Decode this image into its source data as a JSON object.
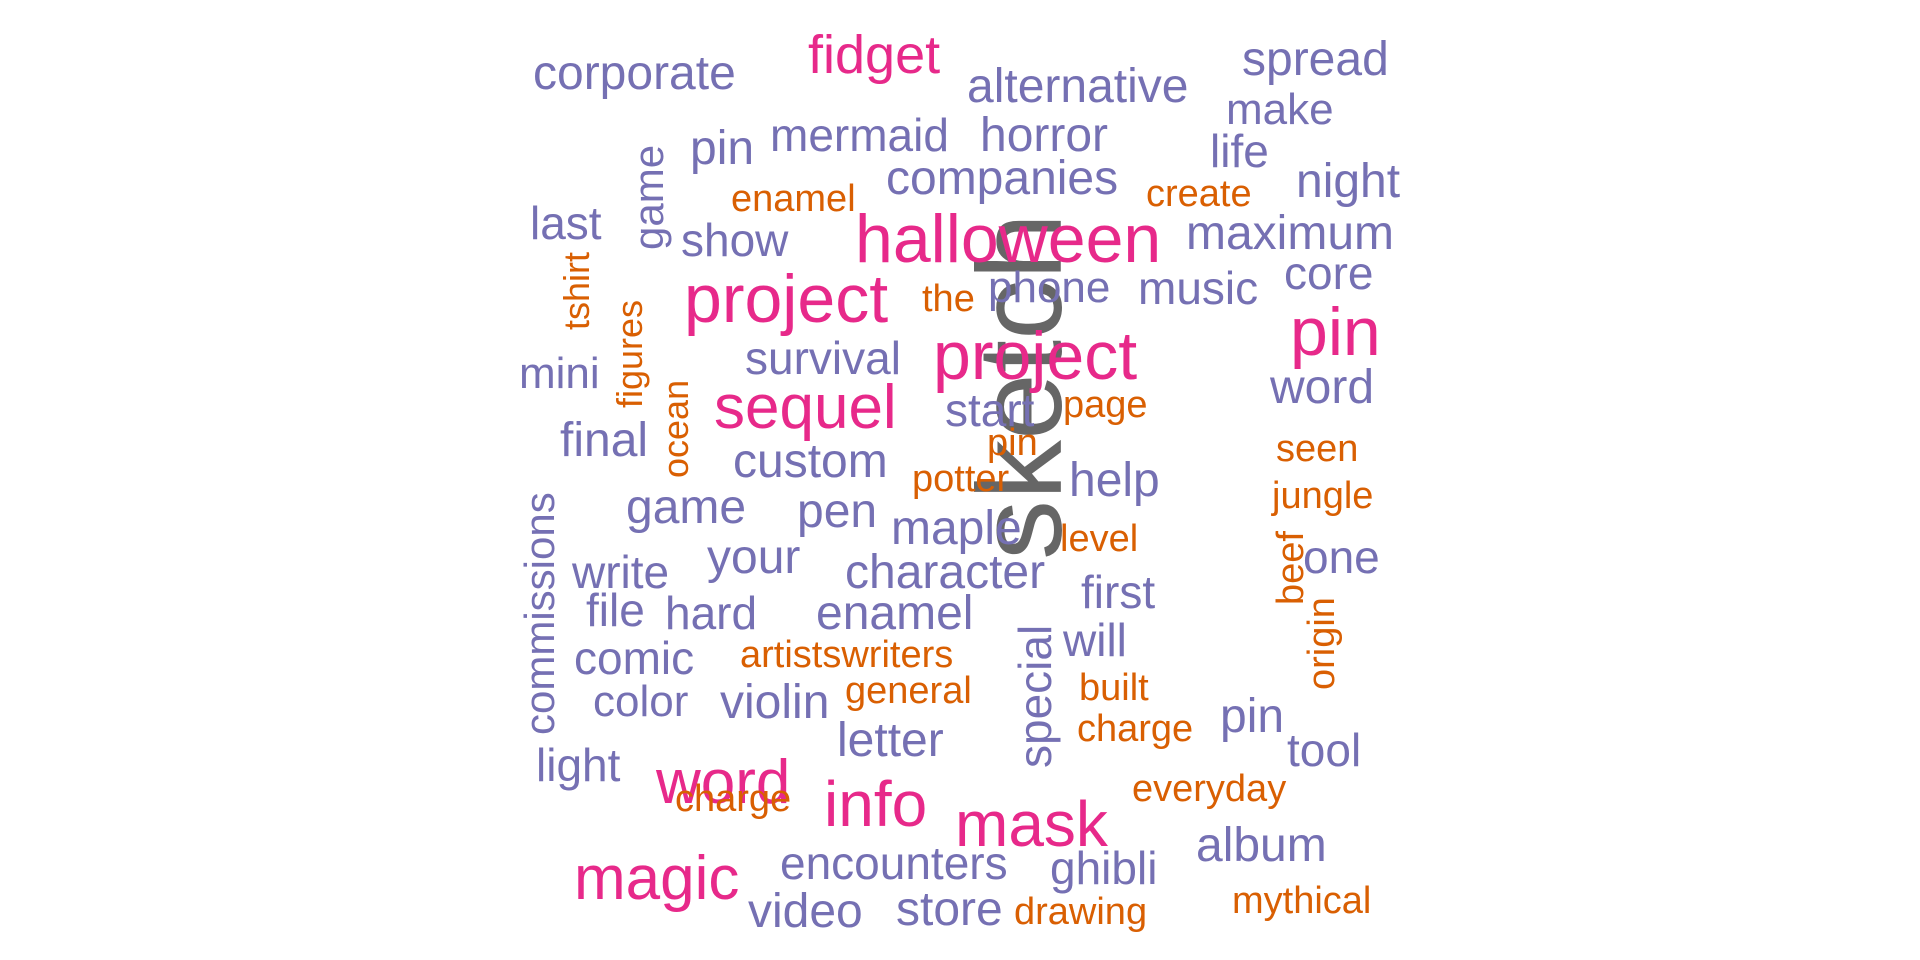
{
  "colors": {
    "primary": "#7570b3",
    "secondary": "#d95f02",
    "highlight": "#e7298a",
    "top": "#666666"
  },
  "words": [
    {
      "text": "sketch",
      "color": "top",
      "size": 120,
      "vertical": true
    },
    {
      "text": "fidget",
      "color": "highlight",
      "size": 54
    },
    {
      "text": "halloween",
      "color": "highlight",
      "size": 68
    },
    {
      "text": "project",
      "color": "highlight",
      "size": 68
    },
    {
      "text": "project",
      "color": "highlight",
      "size": 68
    },
    {
      "text": "pin",
      "color": "highlight",
      "size": 68
    },
    {
      "text": "sequel",
      "color": "highlight",
      "size": 62
    },
    {
      "text": "word",
      "color": "highlight",
      "size": 62
    },
    {
      "text": "info",
      "color": "highlight",
      "size": 64
    },
    {
      "text": "mask",
      "color": "highlight",
      "size": 64
    },
    {
      "text": "magic",
      "color": "highlight",
      "size": 62
    },
    {
      "text": "corporate",
      "color": "primary",
      "size": 48
    },
    {
      "text": "alternative",
      "color": "primary",
      "size": 48
    },
    {
      "text": "spread",
      "color": "primary",
      "size": 48
    },
    {
      "text": "make",
      "color": "primary",
      "size": 44
    },
    {
      "text": "game",
      "color": "primary",
      "size": 42,
      "vertical": true
    },
    {
      "text": "pin",
      "color": "primary",
      "size": 48
    },
    {
      "text": "mermaid",
      "color": "primary",
      "size": 46
    },
    {
      "text": "horror",
      "color": "primary",
      "size": 48
    },
    {
      "text": "life",
      "color": "primary",
      "size": 46
    },
    {
      "text": "companies",
      "color": "primary",
      "size": 48
    },
    {
      "text": "night",
      "color": "primary",
      "size": 48
    },
    {
      "text": "last",
      "color": "primary",
      "size": 46
    },
    {
      "text": "show",
      "color": "primary",
      "size": 46
    },
    {
      "text": "maximum",
      "color": "primary",
      "size": 48
    },
    {
      "text": "phone",
      "color": "primary",
      "size": 44
    },
    {
      "text": "music",
      "color": "primary",
      "size": 46
    },
    {
      "text": "core",
      "color": "primary",
      "size": 46
    },
    {
      "text": "mini",
      "color": "primary",
      "size": 44
    },
    {
      "text": "survival",
      "color": "primary",
      "size": 46
    },
    {
      "text": "start",
      "color": "primary",
      "size": 46
    },
    {
      "text": "word",
      "color": "primary",
      "size": 48
    },
    {
      "text": "commissions",
      "color": "primary",
      "size": 42,
      "vertical": true
    },
    {
      "text": "final",
      "color": "primary",
      "size": 48
    },
    {
      "text": "custom",
      "color": "primary",
      "size": 48
    },
    {
      "text": "help",
      "color": "primary",
      "size": 48
    },
    {
      "text": "game",
      "color": "primary",
      "size": 48
    },
    {
      "text": "pen",
      "color": "primary",
      "size": 48
    },
    {
      "text": "maple",
      "color": "primary",
      "size": 48
    },
    {
      "text": "write",
      "color": "primary",
      "size": 46
    },
    {
      "text": "your",
      "color": "primary",
      "size": 48
    },
    {
      "text": "character",
      "color": "primary",
      "size": 48
    },
    {
      "text": "one",
      "color": "primary",
      "size": 46
    },
    {
      "text": "first",
      "color": "primary",
      "size": 46
    },
    {
      "text": "file",
      "color": "primary",
      "size": 46
    },
    {
      "text": "hard",
      "color": "primary",
      "size": 46
    },
    {
      "text": "enamel",
      "color": "primary",
      "size": 48
    },
    {
      "text": "will",
      "color": "primary",
      "size": 46
    },
    {
      "text": "comic",
      "color": "primary",
      "size": 46
    },
    {
      "text": "special",
      "color": "primary",
      "size": 46,
      "vertical": true
    },
    {
      "text": "color",
      "color": "primary",
      "size": 44
    },
    {
      "text": "violin",
      "color": "primary",
      "size": 48
    },
    {
      "text": "pin",
      "color": "primary",
      "size": 48
    },
    {
      "text": "letter",
      "color": "primary",
      "size": 48
    },
    {
      "text": "tool",
      "color": "primary",
      "size": 46
    },
    {
      "text": "light",
      "color": "primary",
      "size": 46
    },
    {
      "text": "album",
      "color": "primary",
      "size": 48
    },
    {
      "text": "encounters",
      "color": "primary",
      "size": 46
    },
    {
      "text": "ghibli",
      "color": "primary",
      "size": 46
    },
    {
      "text": "video",
      "color": "primary",
      "size": 48
    },
    {
      "text": "store",
      "color": "primary",
      "size": 48
    },
    {
      "text": "enamel",
      "color": "secondary",
      "size": 38
    },
    {
      "text": "create",
      "color": "secondary",
      "size": 38
    },
    {
      "text": "tshirt",
      "color": "secondary",
      "size": 36,
      "vertical": true
    },
    {
      "text": "figures",
      "color": "secondary",
      "size": 36,
      "vertical": true
    },
    {
      "text": "the",
      "color": "secondary",
      "size": 38
    },
    {
      "text": "ocean",
      "color": "secondary",
      "size": 36,
      "vertical": true
    },
    {
      "text": "page",
      "color": "secondary",
      "size": 38
    },
    {
      "text": "pin",
      "color": "secondary",
      "size": 38
    },
    {
      "text": "seen",
      "color": "secondary",
      "size": 38
    },
    {
      "text": "potter",
      "color": "secondary",
      "size": 38
    },
    {
      "text": "jungle",
      "color": "secondary",
      "size": 38
    },
    {
      "text": "level",
      "color": "secondary",
      "size": 38
    },
    {
      "text": "beef",
      "color": "secondary",
      "size": 38,
      "vertical": true
    },
    {
      "text": "origin",
      "color": "secondary",
      "size": 38,
      "vertical": true
    },
    {
      "text": "artistswriters",
      "color": "secondary",
      "size": 38
    },
    {
      "text": "general",
      "color": "secondary",
      "size": 38
    },
    {
      "text": "built",
      "color": "secondary",
      "size": 38
    },
    {
      "text": "charge",
      "color": "secondary",
      "size": 38
    },
    {
      "text": "charge",
      "color": "secondary",
      "size": 38
    },
    {
      "text": "everyday",
      "color": "secondary",
      "size": 38
    },
    {
      "text": "drawing",
      "color": "secondary",
      "size": 38
    },
    {
      "text": "mythical",
      "color": "secondary",
      "size": 38
    }
  ]
}
